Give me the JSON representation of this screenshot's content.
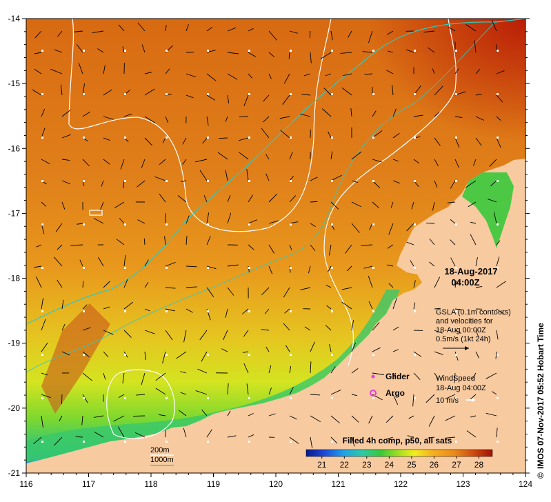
{
  "map": {
    "lon_range": [
      116,
      124
    ],
    "lat_range": [
      -21,
      -14
    ],
    "x_ticks": [
      "116",
      "117",
      "118",
      "119",
      "120",
      "121",
      "122",
      "123",
      "124"
    ],
    "y_ticks": [
      "-14",
      "-15",
      "-16",
      "-17",
      "-18",
      "-19",
      "-20",
      "-21"
    ]
  },
  "annotations": {
    "datetime_line1": "18-Aug-2017",
    "datetime_line2": "04:00Z",
    "gsla_line1": "GSLA (0.1m contours)",
    "gsla_line2": "and velocities for",
    "gsla_line3": "18-Aug 00:00Z",
    "gsla_line4": "0.5m/s (1kt 24h)",
    "glider_label": "Glider",
    "argo_label": "Argo",
    "wind_line1": "WindSpeed",
    "wind_line2": "18-Aug 04:00Z",
    "wind_line3": "10 m/s",
    "isobath_200": "200m",
    "isobath_1000": "1000m",
    "credit": "IMOS 07-Nov-2017 05:52 Hobart Time"
  },
  "colorbar": {
    "title": "Filled 4h comp, p50, all sats",
    "ticks": [
      "21",
      "22",
      "23",
      "24",
      "25",
      "26",
      "27",
      "28"
    ],
    "range": [
      20.3,
      28.6
    ]
  },
  "colors": {
    "land": "#f7caa0",
    "isobath_200": "#ffffff",
    "isobath_1000": "#33c8bd",
    "glider": "#e040e0",
    "argo": "#e040e0"
  }
}
